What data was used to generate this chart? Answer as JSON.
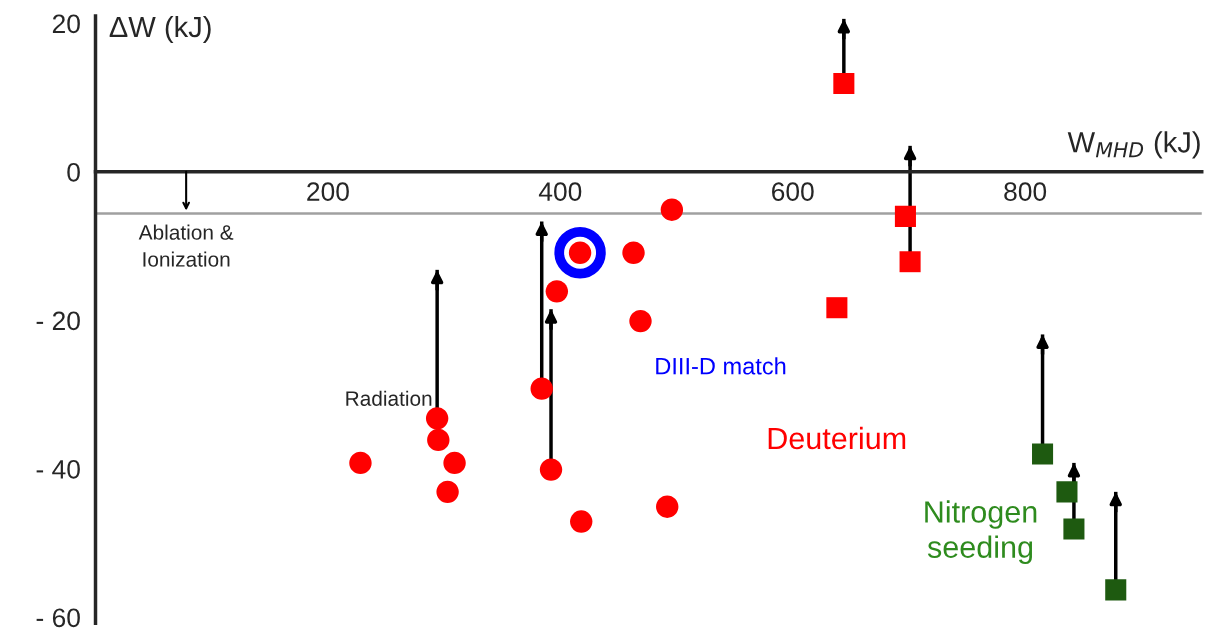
{
  "chart_data": {
    "type": "scatter",
    "xlabel": "W$_{MHD}$ (kJ)",
    "ylabel": "ΔW (kJ)",
    "xlim": [
      0,
      952
    ],
    "ylim": [
      -60.8,
      21
    ],
    "xticks": [
      200,
      400,
      600,
      800
    ],
    "yticks": [
      {
        "value": -60,
        "label": "- 60"
      },
      {
        "value": -40,
        "label": "- 40"
      },
      {
        "value": -20,
        "label": "- 20"
      },
      0,
      20
    ],
    "grid": false,
    "legend": false,
    "series": [
      {
        "name": "Deuterium",
        "color": "#ff0000",
        "marker": "circle",
        "x": [
          228,
          294,
          295,
          309,
          303,
          384,
          392,
          397,
          417,
          463,
          496,
          469,
          418,
          492
        ],
        "values": [
          -39.2,
          -33.2,
          -36.1,
          -39.2,
          -43.1,
          -29.2,
          -40.1,
          -16.1,
          -10.9,
          -10.9,
          -5.1,
          -20.1,
          -47.1,
          -45.1
        ],
        "errors": [
          null,
          [
            -33.2,
            -13.2
          ],
          null,
          null,
          null,
          [
            -29.2,
            -6.7
          ],
          [
            -40.1,
            -18.5
          ],
          null,
          null,
          null,
          null,
          null,
          null,
          null
        ]
      },
      {
        "color": "#ff0000",
        "marker": "square",
        "x": [
          644,
          697,
          701,
          638
        ],
        "values": [
          11.9,
          -6,
          -12.1,
          -18.3
        ],
        "errors": [
          [
            11.9,
            20.6
          ],
          null,
          [
            -12.1,
            3.5
          ],
          null
        ]
      },
      {
        "name": "DIII-D match",
        "color": "#0000ff",
        "marker": "circle",
        "x": [
          417
        ],
        "values": [
          -10.9
        ]
      },
      {
        "name": "Nitrogen seeding",
        "color": "#1e5a10",
        "marker": "square",
        "x": [
          815,
          836,
          842,
          878
        ],
        "values": [
          -38,
          -43.1,
          -48.1,
          -56.3
        ],
        "errors": [
          [
            -38,
            -21.9
          ],
          null,
          [
            -48.1,
            -39.2
          ],
          [
            -56.3,
            -43.1
          ]
        ]
      }
    ],
    "ref_lines": [
      {
        "axis": "y",
        "value": -5.6,
        "color": "#a0a0a0"
      }
    ],
    "annotations": [
      {
        "text": "Ablation &\nIonization",
        "x": 78,
        "y": -5.6
      },
      "Radiation"
    ]
  }
}
